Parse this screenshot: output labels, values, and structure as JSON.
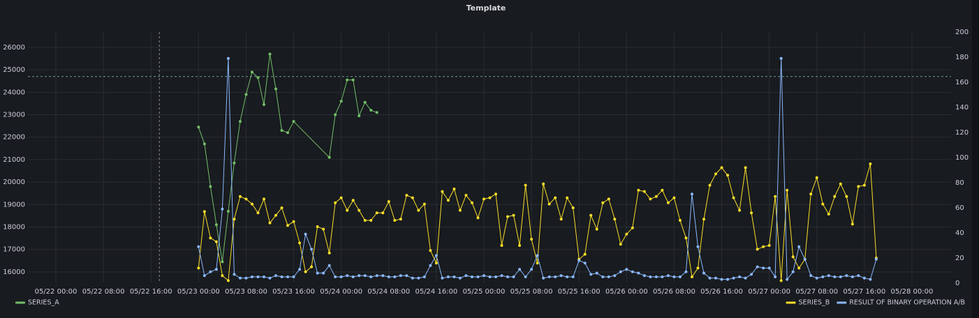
{
  "chart_data": {
    "type": "line",
    "title": "Template",
    "xlim": [
      "05/21 19:18",
      "05/28 06:35"
    ],
    "xticks": [
      "05/22 00:00",
      "05/22 08:00",
      "05/22 16:00",
      "05/23 00:00",
      "05/23 08:00",
      "05/23 16:00",
      "05/24 00:00",
      "05/24 08:00",
      "05/24 16:00",
      "05/25 00:00",
      "05/25 08:00",
      "05/25 16:00",
      "05/26 00:00",
      "05/26 08:00",
      "05/26 16:00",
      "05/27 00:00",
      "05/27 08:00",
      "05/27 16:00",
      "05/28 00:00"
    ],
    "ylim": [
      15500,
      26680
    ],
    "yticks": [
      16000,
      17000,
      18000,
      19000,
      20000,
      21000,
      22000,
      23000,
      24000,
      25000,
      26000
    ],
    "y2lim": [
      0,
      200
    ],
    "y2ticks": [
      0,
      20,
      40,
      60,
      80,
      100,
      120,
      140,
      160,
      180,
      200
    ],
    "grid": true,
    "threshold_y": 24700,
    "annotation_x": "05/22 17:24",
    "x": [
      "05/23 00:00",
      "05/23 01:00",
      "05/23 02:00",
      "05/23 03:00",
      "05/23 04:00",
      "05/23 05:00",
      "05/23 06:00",
      "05/23 07:00",
      "05/23 08:00",
      "05/23 09:00",
      "05/23 10:00",
      "05/23 11:00",
      "05/23 12:00",
      "05/23 13:00",
      "05/23 14:00",
      "05/23 15:00",
      "05/23 16:00",
      "05/23 17:00",
      "05/23 18:00",
      "05/23 19:00",
      "05/23 20:00",
      "05/23 21:00",
      "05/23 22:00",
      "05/23 23:00",
      "05/24 00:00",
      "05/24 01:00",
      "05/24 02:00",
      "05/24 03:00",
      "05/24 04:00",
      "05/24 05:00",
      "05/24 06:00",
      "05/24 07:00",
      "05/24 08:00",
      "05/24 09:00",
      "05/24 10:00",
      "05/24 11:00",
      "05/24 12:00",
      "05/24 13:00",
      "05/24 14:00",
      "05/24 15:00",
      "05/24 16:00",
      "05/24 17:00",
      "05/24 18:00",
      "05/24 19:00",
      "05/24 20:00",
      "05/24 21:00",
      "05/24 22:00",
      "05/24 23:00",
      "05/25 00:00",
      "05/25 01:00",
      "05/25 02:00",
      "05/25 03:00",
      "05/25 04:00",
      "05/25 05:00",
      "05/25 06:00",
      "05/25 07:00",
      "05/25 08:00",
      "05/25 09:00",
      "05/25 10:00",
      "05/25 11:00",
      "05/25 12:00",
      "05/25 13:00",
      "05/25 14:00",
      "05/25 15:00",
      "05/25 16:00",
      "05/25 17:00",
      "05/25 18:00",
      "05/25 19:00",
      "05/25 20:00",
      "05/25 21:00",
      "05/25 22:00",
      "05/25 23:00",
      "05/26 00:00",
      "05/26 01:00",
      "05/26 02:00",
      "05/26 03:00",
      "05/26 04:00",
      "05/26 05:00",
      "05/26 06:00",
      "05/26 07:00",
      "05/26 08:00",
      "05/26 09:00",
      "05/26 10:00",
      "05/26 11:00",
      "05/26 12:00",
      "05/26 13:00",
      "05/26 14:00",
      "05/26 15:00",
      "05/26 16:00",
      "05/26 17:00",
      "05/26 18:00",
      "05/26 19:00",
      "05/26 20:00",
      "05/26 21:00",
      "05/26 22:00",
      "05/26 23:00",
      "05/27 00:00",
      "05/27 01:00",
      "05/27 02:00",
      "05/27 03:00",
      "05/27 04:00",
      "05/27 05:00",
      "05/27 06:00",
      "05/27 07:00",
      "05/27 08:00",
      "05/27 09:00",
      "05/27 10:00",
      "05/27 11:00",
      "05/27 12:00",
      "05/27 13:00",
      "05/27 14:00",
      "05/27 15:00",
      "05/27 16:00",
      "05/27 17:00",
      "05/27 18:00"
    ],
    "series": [
      {
        "name": "SERIES_A",
        "color": "#73bf69",
        "legend": "left",
        "x": [
          "05/23 00:00",
          "05/23 01:00",
          "05/23 02:00",
          "05/23 03:00",
          "05/23 04:00",
          "05/23 05:00",
          "05/23 06:00",
          "05/23 07:00",
          "05/23 08:00",
          "05/23 09:00",
          "05/23 10:00",
          "05/23 11:00",
          "05/23 12:00",
          "05/23 13:00",
          "05/23 14:00",
          "05/23 15:00",
          "05/23 16:00",
          "05/23 22:00",
          "05/23 23:00",
          "05/24 00:00",
          "05/24 01:00",
          "05/24 02:00",
          "05/24 03:00",
          "05/24 04:00",
          "05/24 05:00",
          "05/24 06:00"
        ],
        "values": [
          22450,
          21700,
          19800,
          18100,
          16450,
          18700,
          20850,
          22700,
          23900,
          24900,
          24650,
          23450,
          25700,
          24150,
          22300,
          22200,
          22700,
          21100,
          23000,
          23600,
          24550,
          24550,
          22950,
          23550,
          23200,
          23100
        ]
      },
      {
        "name": "SERIES_B",
        "color": "#fade2a",
        "axis": "y2",
        "legend": "right",
        "values": [
          12,
          57,
          36,
          33,
          6,
          2,
          51,
          69,
          67,
          63,
          56,
          67,
          48,
          54,
          60,
          46,
          49,
          32,
          9,
          13,
          45,
          43,
          24,
          64,
          68,
          58,
          66,
          58,
          50,
          50,
          56,
          56,
          65,
          50,
          51,
          70,
          68,
          58,
          63,
          26,
          16,
          73,
          66,
          75,
          58,
          70,
          64,
          52,
          67,
          68,
          71,
          30,
          53,
          54,
          30,
          78,
          35,
          16,
          79,
          63,
          68,
          51,
          68,
          60,
          19,
          23,
          54,
          43,
          64,
          67,
          51,
          31,
          39,
          44,
          74,
          73,
          67,
          69,
          74,
          64,
          68,
          50,
          36,
          5,
          12,
          51,
          78,
          87,
          92,
          86,
          68,
          58,
          92,
          56,
          27,
          29,
          30,
          69,
          2,
          74,
          21,
          12,
          19,
          71,
          84,
          63,
          55,
          69,
          79,
          69,
          47,
          77,
          78,
          95,
          20
        ]
      },
      {
        "name": "RESULT OF BINARY OPERATION A/B",
        "color": "#8ab8ff",
        "axis": "y2",
        "legend": "right",
        "values": [
          29,
          6,
          9,
          11,
          59,
          179,
          7,
          4,
          4,
          5,
          5,
          5,
          4,
          6,
          5,
          5,
          5,
          11,
          39,
          27,
          8,
          8,
          14,
          5,
          5,
          6,
          5,
          6,
          6,
          5,
          6,
          6,
          5,
          5,
          6,
          6,
          4,
          4,
          5,
          14,
          22,
          4,
          5,
          5,
          4,
          6,
          5,
          5,
          6,
          5,
          5,
          6,
          5,
          5,
          11,
          5,
          11,
          22,
          4,
          5,
          5,
          6,
          5,
          5,
          18,
          16,
          7,
          8,
          5,
          5,
          6,
          9,
          11,
          9,
          8,
          6,
          5,
          5,
          5,
          6,
          5,
          5,
          9,
          71,
          29,
          8,
          4,
          4,
          3,
          3,
          4,
          5,
          4,
          7,
          13,
          12,
          12,
          5,
          179,
          3,
          9,
          29,
          19,
          6,
          4,
          5,
          6,
          5,
          5,
          6,
          5,
          6,
          4,
          3,
          19
        ]
      }
    ]
  }
}
